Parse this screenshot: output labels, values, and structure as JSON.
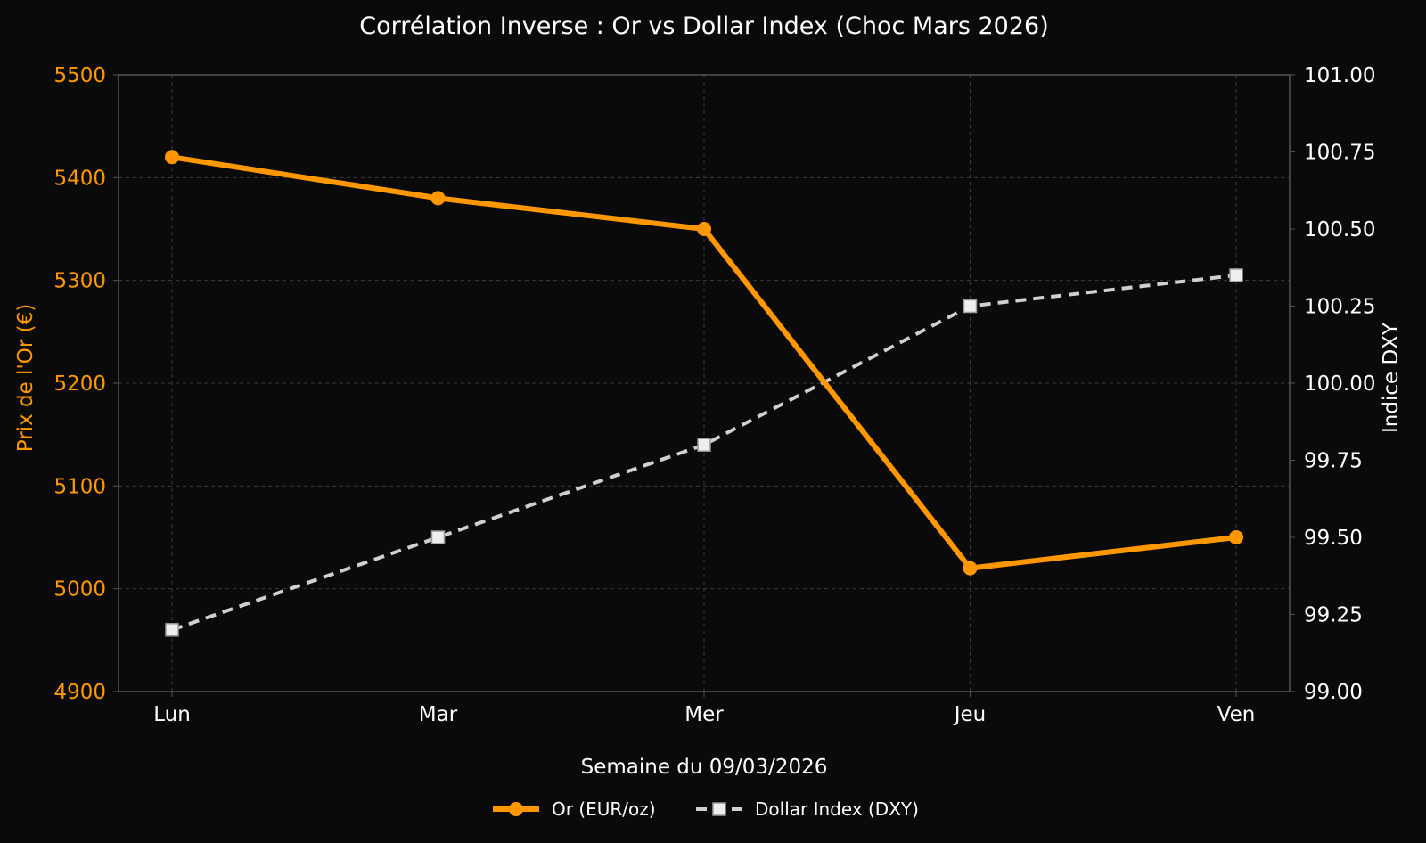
{
  "chart_data": {
    "type": "line",
    "title": "Corrélation Inverse : Or vs Dollar Index (Choc Mars 2026)",
    "xlabel": "Semaine du 09/03/2026",
    "ylabel_left": "Prix de l'Or (€)",
    "ylabel_right": "Indice DXY",
    "categories": [
      "Lun",
      "Mar",
      "Mer",
      "Jeu",
      "Ven"
    ],
    "ylim_left": [
      4900,
      5500
    ],
    "yticks_left": [
      "4900",
      "5000",
      "5100",
      "5200",
      "5300",
      "5400",
      "5500"
    ],
    "ylim_right": [
      99.0,
      101.0
    ],
    "yticks_right": [
      "99.00",
      "99.25",
      "99.50",
      "99.75",
      "100.00",
      "100.25",
      "100.50",
      "100.75",
      "101.00"
    ],
    "grid": true,
    "legend_position": "bottom-center",
    "series": [
      {
        "name": "Or (EUR/oz)",
        "axis": "left",
        "values": [
          5420,
          5380,
          5350,
          5020,
          5050
        ],
        "color": "#ff9800",
        "marker": "circle",
        "line_style": "solid"
      },
      {
        "name": "Dollar Index (DXY)",
        "axis": "right",
        "values": [
          99.2,
          99.5,
          99.8,
          100.25,
          100.35
        ],
        "color": "#d0d0d0",
        "marker": "square",
        "line_style": "dashed"
      }
    ],
    "colors": {
      "background": "#0a0a0a",
      "grid": "#3a3a3a",
      "axis": "#555555",
      "gold": "#ff9800",
      "dxy": "#d0d0d0"
    }
  }
}
